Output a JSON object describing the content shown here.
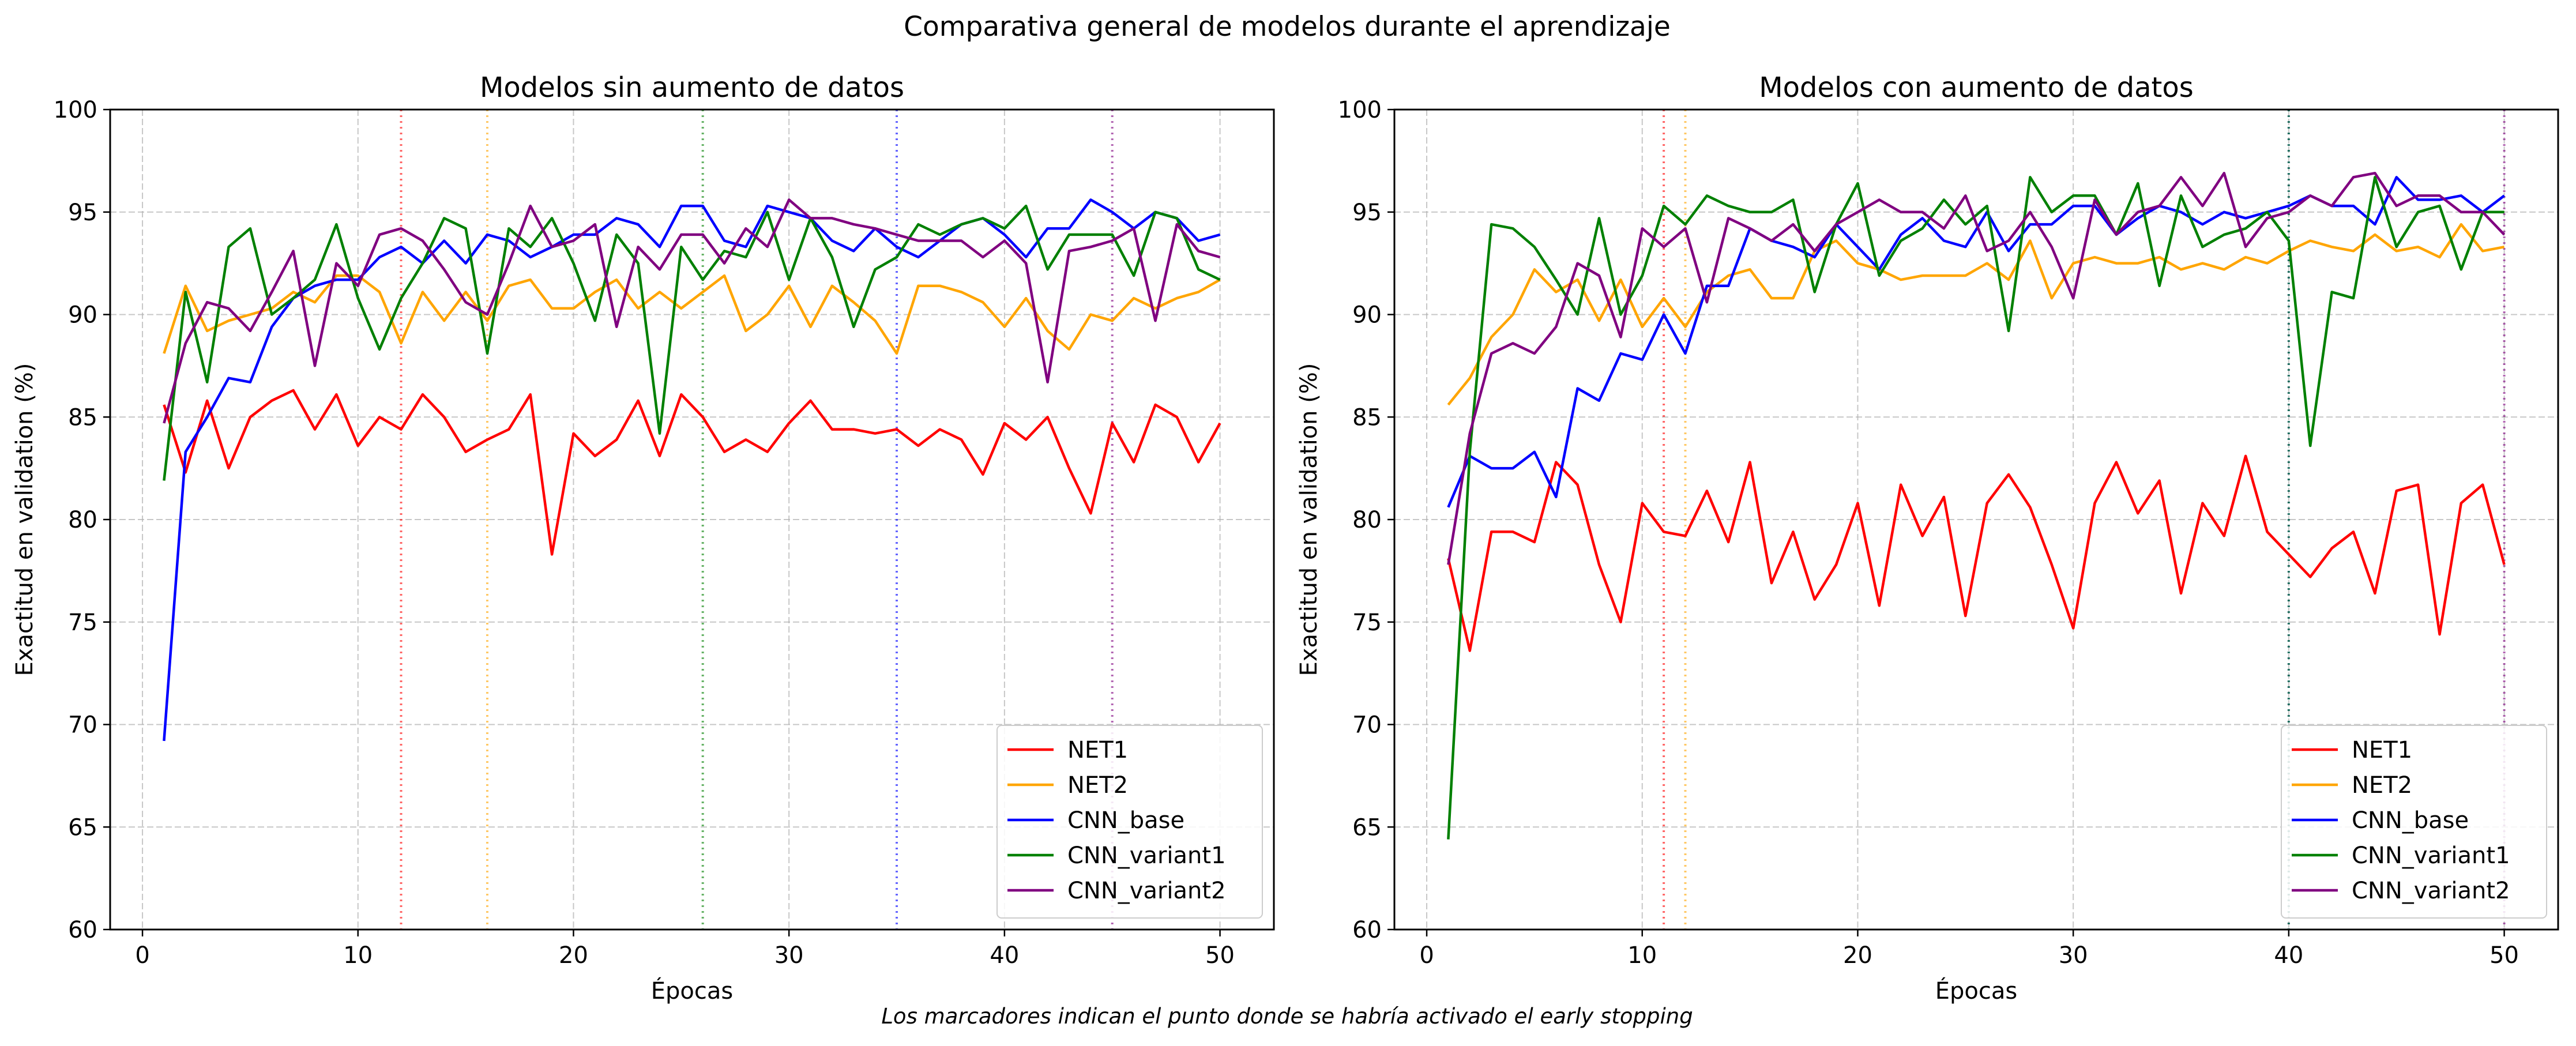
{
  "figure": {
    "suptitle": "Comparativa general de modelos durante el aprendizaje",
    "footnote": "Los marcadores indican el punto donde se habría activado el early stopping"
  },
  "chart_data": [
    {
      "type": "line",
      "title": "Modelos sin aumento de datos",
      "xlabel": "Épocas",
      "ylabel": "Exactitud en validation (%)",
      "xlim": [
        -1.5,
        52.5
      ],
      "ylim": [
        60,
        100
      ],
      "xticks": [
        0,
        10,
        20,
        30,
        40,
        50
      ],
      "yticks": [
        60,
        65,
        70,
        75,
        80,
        85,
        90,
        95,
        100
      ],
      "grid": true,
      "legend": "lower right",
      "x": [
        1,
        2,
        3,
        4,
        5,
        6,
        7,
        8,
        9,
        10,
        11,
        12,
        13,
        14,
        15,
        16,
        17,
        18,
        19,
        20,
        21,
        22,
        23,
        24,
        25,
        26,
        27,
        28,
        29,
        30,
        31,
        32,
        33,
        34,
        35,
        36,
        37,
        38,
        39,
        40,
        41,
        42,
        43,
        44,
        45,
        46,
        47,
        48,
        49,
        50
      ],
      "series": [
        {
          "name": "NET1",
          "color": "#ff0000",
          "early_stop": 12,
          "values": [
            85.6,
            82.3,
            85.8,
            82.5,
            85.0,
            85.8,
            86.3,
            84.4,
            86.1,
            83.6,
            85.0,
            84.4,
            86.1,
            85.0,
            83.3,
            83.9,
            84.4,
            86.1,
            78.3,
            84.2,
            83.1,
            83.9,
            85.8,
            83.1,
            86.1,
            85.0,
            83.3,
            83.9,
            83.3,
            84.7,
            85.8,
            84.4,
            84.4,
            84.2,
            84.4,
            83.6,
            84.4,
            83.9,
            82.2,
            84.7,
            83.9,
            85.0,
            82.5,
            80.3,
            84.7,
            82.8,
            85.6,
            85.0,
            82.8,
            84.7
          ]
        },
        {
          "name": "NET2",
          "color": "#ffa500",
          "early_stop": 16,
          "values": [
            88.1,
            91.4,
            89.2,
            89.7,
            90.0,
            90.3,
            91.1,
            90.6,
            91.9,
            91.9,
            91.1,
            88.6,
            91.1,
            89.7,
            91.1,
            89.7,
            91.4,
            91.7,
            90.3,
            90.3,
            91.1,
            91.7,
            90.3,
            91.1,
            90.3,
            91.1,
            91.9,
            89.2,
            90.0,
            91.4,
            89.4,
            91.4,
            90.6,
            89.7,
            88.1,
            91.4,
            91.4,
            91.1,
            90.6,
            89.4,
            90.8,
            89.2,
            88.3,
            90.0,
            89.7,
            90.8,
            90.3,
            90.8,
            91.1,
            91.7
          ]
        },
        {
          "name": "CNN_base",
          "color": "#0000ff",
          "early_stop": 35,
          "values": [
            69.2,
            83.3,
            85.0,
            86.9,
            86.7,
            89.4,
            90.8,
            91.4,
            91.7,
            91.7,
            92.8,
            93.3,
            92.5,
            93.6,
            92.5,
            93.9,
            93.6,
            92.8,
            93.3,
            93.9,
            93.9,
            94.7,
            94.4,
            93.3,
            95.3,
            95.3,
            93.6,
            93.3,
            95.3,
            95.0,
            94.7,
            93.6,
            93.1,
            94.2,
            93.3,
            92.8,
            93.6,
            94.4,
            94.7,
            93.9,
            92.8,
            94.2,
            94.2,
            95.6,
            95.0,
            94.2,
            95.0,
            94.7,
            93.6,
            93.9
          ]
        },
        {
          "name": "CNN_variant1",
          "color": "#008000",
          "early_stop": 26,
          "values": [
            81.9,
            91.1,
            86.7,
            93.3,
            94.2,
            90.0,
            90.8,
            91.7,
            94.4,
            90.8,
            88.3,
            90.8,
            92.5,
            94.7,
            94.2,
            88.1,
            94.2,
            93.3,
            94.7,
            92.5,
            89.7,
            93.9,
            92.5,
            84.2,
            93.3,
            91.7,
            93.1,
            92.8,
            95.0,
            91.7,
            94.7,
            92.8,
            89.4,
            92.2,
            92.8,
            94.4,
            93.9,
            94.4,
            94.7,
            94.2,
            95.3,
            92.2,
            93.9,
            93.9,
            93.9,
            91.9,
            95.0,
            94.7,
            92.2,
            91.7
          ]
        },
        {
          "name": "CNN_variant2",
          "color": "#800080",
          "early_stop": 45,
          "values": [
            84.7,
            88.6,
            90.6,
            90.3,
            89.2,
            91.1,
            93.1,
            87.5,
            92.5,
            91.4,
            93.9,
            94.2,
            93.6,
            92.2,
            90.6,
            90.0,
            92.5,
            95.3,
            93.3,
            93.6,
            94.4,
            89.4,
            93.3,
            92.2,
            93.9,
            93.9,
            92.5,
            94.2,
            93.3,
            95.6,
            94.7,
            94.7,
            94.4,
            94.2,
            93.9,
            93.6,
            93.6,
            93.6,
            92.8,
            93.6,
            92.5,
            86.7,
            93.1,
            93.3,
            93.6,
            94.2,
            89.7,
            94.4,
            93.1,
            92.8
          ]
        }
      ]
    },
    {
      "type": "line",
      "title": "Modelos con aumento de datos",
      "xlabel": "Épocas",
      "ylabel": "Exactitud en validation (%)",
      "xlim": [
        -1.5,
        52.5
      ],
      "ylim": [
        60,
        100
      ],
      "xticks": [
        0,
        10,
        20,
        30,
        40,
        50
      ],
      "yticks": [
        60,
        65,
        70,
        75,
        80,
        85,
        90,
        95,
        100
      ],
      "grid": true,
      "legend": "lower right",
      "x": [
        1,
        2,
        3,
        4,
        5,
        6,
        7,
        8,
        9,
        10,
        11,
        12,
        13,
        14,
        15,
        16,
        17,
        18,
        19,
        20,
        21,
        22,
        23,
        24,
        25,
        26,
        27,
        28,
        29,
        30,
        31,
        32,
        33,
        34,
        35,
        36,
        37,
        38,
        39,
        40,
        41,
        42,
        43,
        44,
        45,
        46,
        47,
        48,
        49,
        50
      ],
      "series": [
        {
          "name": "NET1",
          "color": "#ff0000",
          "early_stop": 11,
          "values": [
            78.1,
            73.6,
            79.4,
            79.4,
            78.9,
            82.8,
            81.7,
            77.8,
            75.0,
            80.8,
            79.4,
            79.2,
            81.4,
            78.9,
            82.8,
            76.9,
            79.4,
            76.1,
            77.8,
            80.8,
            75.8,
            81.7,
            79.2,
            81.1,
            75.3,
            80.8,
            82.2,
            80.6,
            77.8,
            74.7,
            80.8,
            82.8,
            80.3,
            81.9,
            76.4,
            80.8,
            79.2,
            83.1,
            79.4,
            78.3,
            77.2,
            78.6,
            79.4,
            76.4,
            81.4,
            81.7,
            74.4,
            80.8,
            81.7,
            77.8
          ]
        },
        {
          "name": "NET2",
          "color": "#ffa500",
          "early_stop": 12,
          "values": [
            85.6,
            86.9,
            88.9,
            90.0,
            92.2,
            91.1,
            91.7,
            89.7,
            91.7,
            89.4,
            90.8,
            89.4,
            91.1,
            91.9,
            92.2,
            90.8,
            90.8,
            93.1,
            93.6,
            92.5,
            92.2,
            91.7,
            91.9,
            91.9,
            91.9,
            92.5,
            91.7,
            93.6,
            90.8,
            92.5,
            92.8,
            92.5,
            92.5,
            92.8,
            92.2,
            92.5,
            92.2,
            92.8,
            92.5,
            93.1,
            93.6,
            93.3,
            93.1,
            93.9,
            93.1,
            93.3,
            92.8,
            94.4,
            93.1,
            93.3
          ]
        },
        {
          "name": "CNN_base",
          "color": "#0000ff",
          "early_stop": 40,
          "values": [
            80.6,
            83.1,
            82.5,
            82.5,
            83.3,
            81.1,
            86.4,
            85.8,
            88.1,
            87.8,
            90.0,
            88.1,
            91.4,
            91.4,
            94.2,
            93.6,
            93.3,
            92.8,
            94.4,
            93.3,
            92.2,
            93.9,
            94.7,
            93.6,
            93.3,
            95.0,
            93.1,
            94.4,
            94.4,
            95.3,
            95.3,
            93.9,
            94.7,
            95.3,
            95.0,
            94.4,
            95.0,
            94.7,
            95.0,
            95.3,
            95.8,
            95.3,
            95.3,
            94.4,
            96.7,
            95.6,
            95.6,
            95.8,
            95.0,
            95.8
          ]
        },
        {
          "name": "CNN_variant1",
          "color": "#008000",
          "early_stop": 40,
          "values": [
            64.4,
            83.3,
            94.4,
            94.2,
            93.3,
            91.7,
            90.0,
            94.7,
            90.0,
            91.9,
            95.3,
            94.4,
            95.8,
            95.3,
            95.0,
            95.0,
            95.6,
            91.1,
            94.4,
            96.4,
            91.9,
            93.6,
            94.2,
            95.6,
            94.4,
            95.3,
            89.2,
            96.7,
            95.0,
            95.8,
            95.8,
            93.9,
            96.4,
            91.4,
            95.8,
            93.3,
            93.9,
            94.2,
            95.0,
            93.6,
            83.6,
            91.1,
            90.8,
            96.7,
            93.3,
            95.0,
            95.3,
            92.2,
            95.0,
            95.0
          ]
        },
        {
          "name": "CNN_variant2",
          "color": "#800080",
          "early_stop": 50,
          "values": [
            77.8,
            84.2,
            88.1,
            88.6,
            88.1,
            89.4,
            92.5,
            91.9,
            88.9,
            94.2,
            93.3,
            94.2,
            90.6,
            94.7,
            94.2,
            93.6,
            94.4,
            93.1,
            94.4,
            95.0,
            95.6,
            95.0,
            95.0,
            94.2,
            95.8,
            93.1,
            93.6,
            95.0,
            93.3,
            90.8,
            95.6,
            93.9,
            95.0,
            95.3,
            96.7,
            95.3,
            96.9,
            93.3,
            94.7,
            95.0,
            95.8,
            95.3,
            96.7,
            96.9,
            95.3,
            95.8,
            95.8,
            95.0,
            95.0,
            93.9
          ]
        }
      ]
    }
  ]
}
